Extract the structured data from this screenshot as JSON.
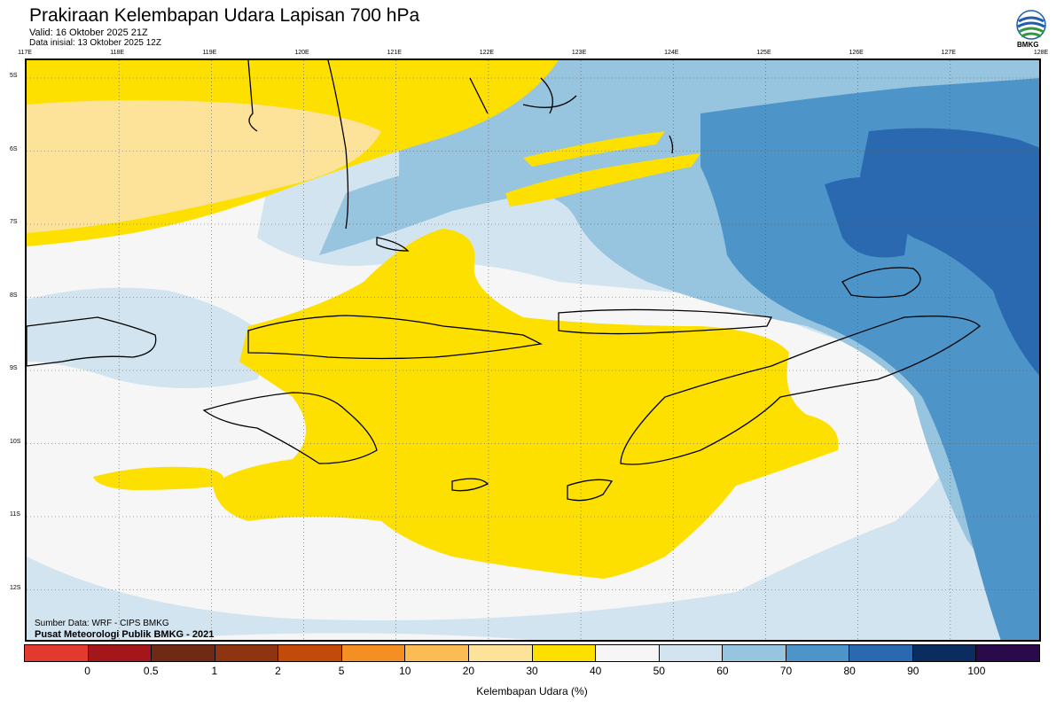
{
  "header": {
    "title": "Prakiraan Kelembapan Udara Lapisan 700 hPa",
    "valid": "Valid: 16 Oktober 2025 21Z",
    "init": "Data inisial: 13 Oktober 2025 12Z",
    "logo_text": "BMKG"
  },
  "map": {
    "lon_ticks": [
      "117E",
      "118E",
      "119E",
      "120E",
      "121E",
      "122E",
      "123E",
      "124E",
      "125E",
      "126E",
      "127E",
      "128E"
    ],
    "lat_ticks": [
      "5S",
      "6S",
      "7S",
      "8S",
      "9S",
      "10S",
      "11S",
      "12S"
    ]
  },
  "footer": {
    "source": "Sumber Data: WRF - CIPS BMKG",
    "producer": "Pusat Meteorologi Publik BMKG - 2021"
  },
  "colorbar": {
    "title": "Kelembapan Udara (%)",
    "labels": [
      "0",
      "0.5",
      "1",
      "2",
      "5",
      "10",
      "20",
      "30",
      "40",
      "50",
      "60",
      "70",
      "80",
      "90",
      "100"
    ],
    "colors": [
      "#e23a2f",
      "#a3161a",
      "#6e2a12",
      "#8f3410",
      "#c24a0a",
      "#f48f23",
      "#fbbd53",
      "#fde39a",
      "#fde000",
      "#f6f6f6",
      "#d1e4f0",
      "#97c4df",
      "#4d95c8",
      "#2a68b0",
      "#0b2c5e",
      "#2a0a4a"
    ]
  },
  "colors": {
    "yellow": "#fde000",
    "light_yellow": "#fde39a",
    "white": "#f6f6f6",
    "pale_blue": "#d1e4f0",
    "light_blue": "#97c4df",
    "mid_blue": "#4d95c8",
    "dark_blue": "#2a68b0"
  }
}
